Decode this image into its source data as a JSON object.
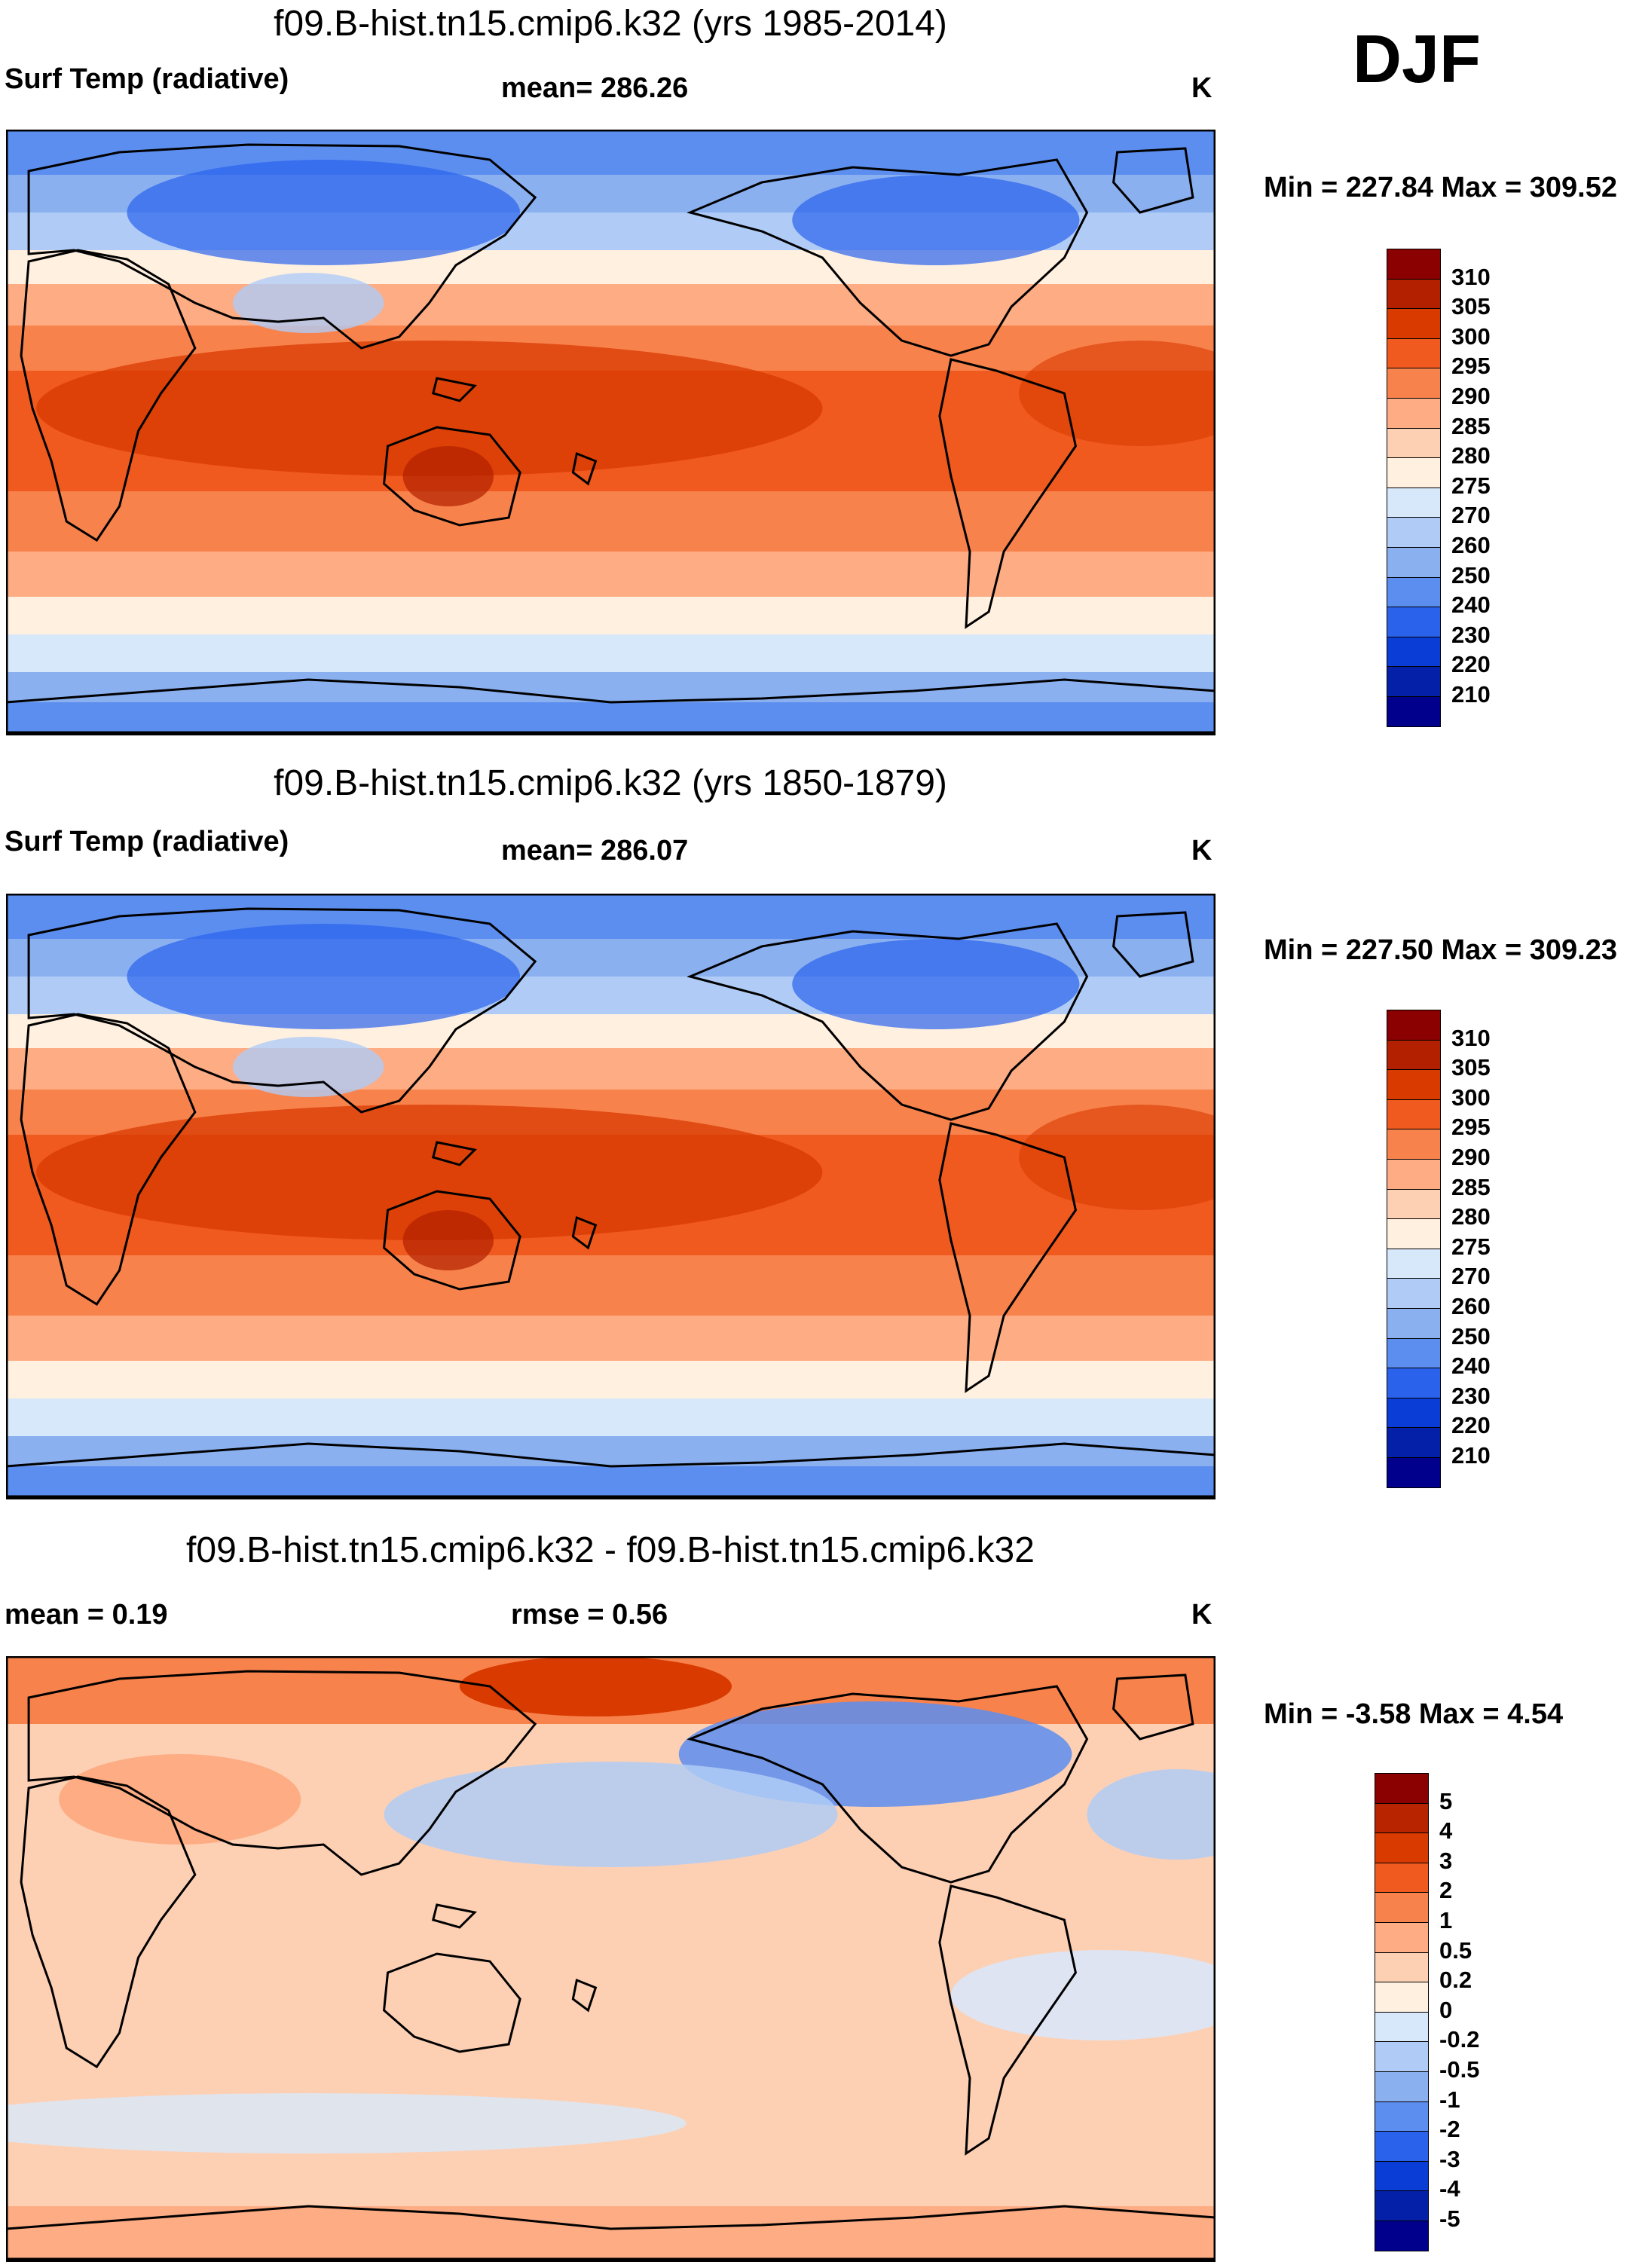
{
  "season": "DJF",
  "units": "K",
  "panels": [
    {
      "title": "f09.B-hist.tn15.cmip6.k32 (yrs 1985-2014)",
      "left_label": "Surf Temp (radiative)",
      "mean_label": "mean= 286.26",
      "units": "K",
      "minmax": "Min = 227.84 Max = 309.52",
      "field": "surface temperature",
      "colorbar": {
        "levels": [
          "310",
          "305",
          "300",
          "295",
          "290",
          "285",
          "280",
          "275",
          "270",
          "260",
          "250",
          "240",
          "230",
          "220",
          "210"
        ],
        "colors": [
          "#8b0000",
          "#b22000",
          "#d83a00",
          "#f05a1e",
          "#f8824c",
          "#fdac84",
          "#fdd0b4",
          "#fff0e0",
          "#d8e8fb",
          "#b0ccf6",
          "#8ab0f0",
          "#5c8ef0",
          "#2a62ec",
          "#0a3cd6",
          "#0420a8",
          "#00008c"
        ]
      }
    },
    {
      "title": "f09.B-hist.tn15.cmip6.k32 (yrs 1850-1879)",
      "left_label": "Surf Temp (radiative)",
      "mean_label": "mean= 286.07",
      "units": "K",
      "minmax": "Min = 227.50 Max = 309.23",
      "field": "surface temperature",
      "colorbar": {
        "levels": [
          "310",
          "305",
          "300",
          "295",
          "290",
          "285",
          "280",
          "275",
          "270",
          "260",
          "250",
          "240",
          "230",
          "220",
          "210"
        ],
        "colors": [
          "#8b0000",
          "#b22000",
          "#d83a00",
          "#f05a1e",
          "#f8824c",
          "#fdac84",
          "#fdd0b4",
          "#fff0e0",
          "#d8e8fb",
          "#b0ccf6",
          "#8ab0f0",
          "#5c8ef0",
          "#2a62ec",
          "#0a3cd6",
          "#0420a8",
          "#00008c"
        ]
      }
    },
    {
      "title": "f09.B-hist.tn15.cmip6.k32 - f09.B-hist.tn15.cmip6.k32",
      "left_label": "mean =   0.19",
      "mean_label": "rmse =   0.56",
      "units": "K",
      "minmax": "Min =  -3.58 Max =   4.54",
      "field": "difference",
      "colorbar": {
        "levels": [
          "5",
          "4",
          "3",
          "2",
          "1",
          "0.5",
          "0.2",
          "0",
          "-0.2",
          "-0.5",
          "-1",
          "-2",
          "-3",
          "-4",
          "-5"
        ],
        "colors": [
          "#8b0000",
          "#b82400",
          "#d83a00",
          "#f05a1e",
          "#f8824c",
          "#fdac84",
          "#fdd0b4",
          "#fff0e0",
          "#d8e8fb",
          "#b0ccf6",
          "#8ab0f0",
          "#5c8ef0",
          "#2a62ec",
          "#0a3cd6",
          "#0420a8",
          "#00008c"
        ]
      }
    }
  ]
}
